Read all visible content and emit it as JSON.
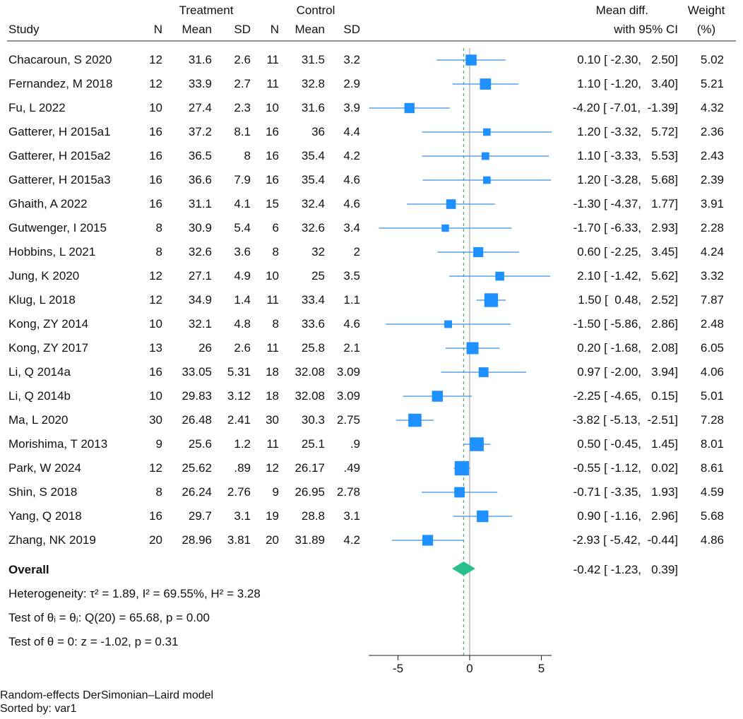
{
  "headers": {
    "treatment": "Treatment",
    "control": "Control",
    "study": "Study",
    "n": "N",
    "mean": "Mean",
    "sd": "SD",
    "meandiff_line1": "Mean diff.",
    "meandiff_line2": "with 95% CI",
    "weight_line1": "Weight",
    "weight_line2": "(%)"
  },
  "studies": [
    {
      "study": "Chacaroun, S 2020",
      "tn": "12",
      "tmean": "31.6",
      "tsd": "2.6",
      "cn": "11",
      "cmean": "31.5",
      "csd": "3.2",
      "md": 0.1,
      "lo": -2.3,
      "hi": 2.5,
      "ci": "0.10 [ -2.30,   2.50]",
      "weight": "5.02",
      "w": 5.02
    },
    {
      "study": "Fernandez, M 2018",
      "tn": "12",
      "tmean": "33.9",
      "tsd": "2.7",
      "cn": "11",
      "cmean": "32.8",
      "csd": "2.9",
      "md": 1.1,
      "lo": -1.2,
      "hi": 3.4,
      "ci": "1.10 [ -1.20,   3.40]",
      "weight": "5.21",
      "w": 5.21
    },
    {
      "study": "Fu, L 2022",
      "tn": "10",
      "tmean": "27.4",
      "tsd": "2.3",
      "cn": "10",
      "cmean": "31.6",
      "csd": "3.9",
      "md": -4.2,
      "lo": -7.01,
      "hi": -1.39,
      "ci": "-4.20 [ -7.01,  -1.39]",
      "weight": "4.32",
      "w": 4.32
    },
    {
      "study": "Gatterer, H 2015a1",
      "tn": "16",
      "tmean": "37.2",
      "tsd": "8.1",
      "cn": "16",
      "cmean": "36",
      "csd": "4.4",
      "md": 1.2,
      "lo": -3.32,
      "hi": 5.72,
      "ci": "1.20 [ -3.32,   5.72]",
      "weight": "2.36",
      "w": 2.36
    },
    {
      "study": "Gatterer, H 2015a2",
      "tn": "16",
      "tmean": "36.5",
      "tsd": "8",
      "cn": "16",
      "cmean": "35.4",
      "csd": "4.2",
      "md": 1.1,
      "lo": -3.33,
      "hi": 5.53,
      "ci": "1.10 [ -3.33,   5.53]",
      "weight": "2.43",
      "w": 2.43
    },
    {
      "study": "Gatterer, H 2015a3",
      "tn": "16",
      "tmean": "36.6",
      "tsd": "7.9",
      "cn": "16",
      "cmean": "35.4",
      "csd": "4.6",
      "md": 1.2,
      "lo": -3.28,
      "hi": 5.68,
      "ci": "1.20 [ -3.28,   5.68]",
      "weight": "2.39",
      "w": 2.39
    },
    {
      "study": "Ghaith, A 2022",
      "tn": "16",
      "tmean": "31.1",
      "tsd": "4.1",
      "cn": "15",
      "cmean": "32.4",
      "csd": "4.6",
      "md": -1.3,
      "lo": -4.37,
      "hi": 1.77,
      "ci": "-1.30 [ -4.37,   1.77]",
      "weight": "3.91",
      "w": 3.91
    },
    {
      "study": "Gutwenger, I 2015",
      "tn": "8",
      "tmean": "30.9",
      "tsd": "5.4",
      "cn": "6",
      "cmean": "32.6",
      "csd": "3.4",
      "md": -1.7,
      "lo": -6.33,
      "hi": 2.93,
      "ci": "-1.70 [ -6.33,   2.93]",
      "weight": "2.28",
      "w": 2.28
    },
    {
      "study": "Hobbins, L 2021",
      "tn": "8",
      "tmean": "32.6",
      "tsd": "3.6",
      "cn": "8",
      "cmean": "32",
      "csd": "2",
      "md": 0.6,
      "lo": -2.25,
      "hi": 3.45,
      "ci": "0.60 [ -2.25,   3.45]",
      "weight": "4.24",
      "w": 4.24
    },
    {
      "study": "Jung, K 2020",
      "tn": "12",
      "tmean": "27.1",
      "tsd": "4.9",
      "cn": "10",
      "cmean": "25",
      "csd": "3.5",
      "md": 2.1,
      "lo": -1.42,
      "hi": 5.62,
      "ci": "2.10 [ -1.42,   5.62]",
      "weight": "3.32",
      "w": 3.32
    },
    {
      "study": "Klug, L 2018",
      "tn": "12",
      "tmean": "34.9",
      "tsd": "1.4",
      "cn": "11",
      "cmean": "33.4",
      "csd": "1.1",
      "md": 1.5,
      "lo": 0.48,
      "hi": 2.52,
      "ci": "1.50 [  0.48,   2.52]",
      "weight": "7.87",
      "w": 7.87
    },
    {
      "study": "Kong, ZY 2014",
      "tn": "10",
      "tmean": "32.1",
      "tsd": "4.8",
      "cn": "8",
      "cmean": "33.6",
      "csd": "4.6",
      "md": -1.5,
      "lo": -5.86,
      "hi": 2.86,
      "ci": "-1.50 [ -5.86,   2.86]",
      "weight": "2.48",
      "w": 2.48
    },
    {
      "study": "Kong, ZY 2017",
      "tn": "13",
      "tmean": "26",
      "tsd": "2.6",
      "cn": "11",
      "cmean": "25.8",
      "csd": "2.1",
      "md": 0.2,
      "lo": -1.68,
      "hi": 2.08,
      "ci": "0.20 [ -1.68,   2.08]",
      "weight": "6.05",
      "w": 6.05
    },
    {
      "study": "Li, Q 2014a",
      "tn": "16",
      "tmean": "33.05",
      "tsd": "5.31",
      "cn": "18",
      "cmean": "32.08",
      "csd": "3.09",
      "md": 0.97,
      "lo": -2.0,
      "hi": 3.94,
      "ci": "0.97 [ -2.00,   3.94]",
      "weight": "4.06",
      "w": 4.06
    },
    {
      "study": "Li, Q 2014b",
      "tn": "10",
      "tmean": "29.83",
      "tsd": "3.12",
      "cn": "18",
      "cmean": "32.08",
      "csd": "3.09",
      "md": -2.25,
      "lo": -4.65,
      "hi": 0.15,
      "ci": "-2.25 [ -4.65,   0.15]",
      "weight": "5.01",
      "w": 5.01
    },
    {
      "study": "Ma, L 2020",
      "tn": "30",
      "tmean": "26.48",
      "tsd": "2.41",
      "cn": "30",
      "cmean": "30.3",
      "csd": "2.75",
      "md": -3.82,
      "lo": -5.13,
      "hi": -2.51,
      "ci": "-3.82 [ -5.13,  -2.51]",
      "weight": "7.28",
      "w": 7.28
    },
    {
      "study": "Morishima, T 2013",
      "tn": "9",
      "tmean": "25.6",
      "tsd": "1.2",
      "cn": "11",
      "cmean": "25.1",
      "csd": ".9",
      "md": 0.5,
      "lo": -0.45,
      "hi": 1.45,
      "ci": "0.50 [ -0.45,   1.45]",
      "weight": "8.01",
      "w": 8.01
    },
    {
      "study": "Park, W 2024",
      "tn": "12",
      "tmean": "25.62",
      "tsd": ".89",
      "cn": "12",
      "cmean": "26.17",
      "csd": ".49",
      "md": -0.55,
      "lo": -1.12,
      "hi": 0.02,
      "ci": "-0.55 [ -1.12,   0.02]",
      "weight": "8.61",
      "w": 8.61
    },
    {
      "study": "Shin, S 2018",
      "tn": "8",
      "tmean": "26.24",
      "tsd": "2.76",
      "cn": "9",
      "cmean": "26.95",
      "csd": "2.78",
      "md": -0.71,
      "lo": -3.35,
      "hi": 1.93,
      "ci": "-0.71 [ -3.35,   1.93]",
      "weight": "4.59",
      "w": 4.59
    },
    {
      "study": "Yang, Q 2018",
      "tn": "16",
      "tmean": "29.7",
      "tsd": "3.1",
      "cn": "19",
      "cmean": "28.8",
      "csd": "3.1",
      "md": 0.9,
      "lo": -1.16,
      "hi": 2.96,
      "ci": "0.90 [ -1.16,   2.96]",
      "weight": "5.68",
      "w": 5.68
    },
    {
      "study": "Zhang, NK 2019",
      "tn": "20",
      "tmean": "28.96",
      "tsd": "3.81",
      "cn": "20",
      "cmean": "31.89",
      "csd": "4.2",
      "md": -2.93,
      "lo": -5.42,
      "hi": -0.44,
      "ci": "-2.93 [ -5.42,  -0.44]",
      "weight": "4.86",
      "w": 4.86
    }
  ],
  "overall": {
    "label": "Overall",
    "md": -0.42,
    "lo": -1.23,
    "hi": 0.39,
    "ci": "-0.42 [ -1.23,   0.39]"
  },
  "stats": {
    "heterogeneity": "Heterogeneity: τ² = 1.89, I² = 69.55%, H² = 3.28",
    "test_theta_j": "Test of θᵢ = θⱼ: Q(20) = 65.68, p = 0.00",
    "test_theta_0": "Test of θ = 0: z = -1.02, p = 0.31"
  },
  "axis": {
    "ticks": [
      -5,
      0,
      5
    ],
    "tick_labels": [
      "-5",
      "0",
      "5"
    ],
    "xlim": [
      -7.1,
      5.72
    ]
  },
  "footer": {
    "model": "Random-effects DerSimonian–Laird model",
    "sorted": "Sorted by: var1"
  },
  "colors": {
    "marker": "#1e90ff",
    "ci_line": "#3b8fe0",
    "diamond": "#2bbf8a",
    "null_line": "#9a9a9a",
    "overall_line": "#5aa469"
  },
  "chart_data": {
    "type": "forest",
    "title": "",
    "xlabel": "Mean diff.",
    "x_ticks": [
      -5,
      0,
      5
    ],
    "null_value": 0,
    "overall_estimate": -0.42,
    "overall_ci": [
      -1.23,
      0.39
    ],
    "series": [
      {
        "name": "Chacaroun, S 2020",
        "estimate": 0.1,
        "ci": [
          -2.3,
          2.5
        ],
        "weight": 5.02
      },
      {
        "name": "Fernandez, M 2018",
        "estimate": 1.1,
        "ci": [
          -1.2,
          3.4
        ],
        "weight": 5.21
      },
      {
        "name": "Fu, L 2022",
        "estimate": -4.2,
        "ci": [
          -7.01,
          -1.39
        ],
        "weight": 4.32
      },
      {
        "name": "Gatterer, H 2015a1",
        "estimate": 1.2,
        "ci": [
          -3.32,
          5.72
        ],
        "weight": 2.36
      },
      {
        "name": "Gatterer, H 2015a2",
        "estimate": 1.1,
        "ci": [
          -3.33,
          5.53
        ],
        "weight": 2.43
      },
      {
        "name": "Gatterer, H 2015a3",
        "estimate": 1.2,
        "ci": [
          -3.28,
          5.68
        ],
        "weight": 2.39
      },
      {
        "name": "Ghaith, A 2022",
        "estimate": -1.3,
        "ci": [
          -4.37,
          1.77
        ],
        "weight": 3.91
      },
      {
        "name": "Gutwenger, I 2015",
        "estimate": -1.7,
        "ci": [
          -6.33,
          2.93
        ],
        "weight": 2.28
      },
      {
        "name": "Hobbins, L 2021",
        "estimate": 0.6,
        "ci": [
          -2.25,
          3.45
        ],
        "weight": 4.24
      },
      {
        "name": "Jung, K 2020",
        "estimate": 2.1,
        "ci": [
          -1.42,
          5.62
        ],
        "weight": 3.32
      },
      {
        "name": "Klug, L 2018",
        "estimate": 1.5,
        "ci": [
          0.48,
          2.52
        ],
        "weight": 7.87
      },
      {
        "name": "Kong, ZY 2014",
        "estimate": -1.5,
        "ci": [
          -5.86,
          2.86
        ],
        "weight": 2.48
      },
      {
        "name": "Kong, ZY 2017",
        "estimate": 0.2,
        "ci": [
          -1.68,
          2.08
        ],
        "weight": 6.05
      },
      {
        "name": "Li, Q 2014a",
        "estimate": 0.97,
        "ci": [
          -2.0,
          3.94
        ],
        "weight": 4.06
      },
      {
        "name": "Li, Q 2014b",
        "estimate": -2.25,
        "ci": [
          -4.65,
          0.15
        ],
        "weight": 5.01
      },
      {
        "name": "Ma, L 2020",
        "estimate": -3.82,
        "ci": [
          -5.13,
          -2.51
        ],
        "weight": 7.28
      },
      {
        "name": "Morishima, T 2013",
        "estimate": 0.5,
        "ci": [
          -0.45,
          1.45
        ],
        "weight": 8.01
      },
      {
        "name": "Park, W 2024",
        "estimate": -0.55,
        "ci": [
          -1.12,
          0.02
        ],
        "weight": 8.61
      },
      {
        "name": "Shin, S 2018",
        "estimate": -0.71,
        "ci": [
          -3.35,
          1.93
        ],
        "weight": 4.59
      },
      {
        "name": "Yang, Q 2018",
        "estimate": 0.9,
        "ci": [
          -1.16,
          2.96
        ],
        "weight": 5.68
      },
      {
        "name": "Zhang, NK 2019",
        "estimate": -2.93,
        "ci": [
          -5.42,
          -0.44
        ],
        "weight": 4.86
      }
    ]
  }
}
